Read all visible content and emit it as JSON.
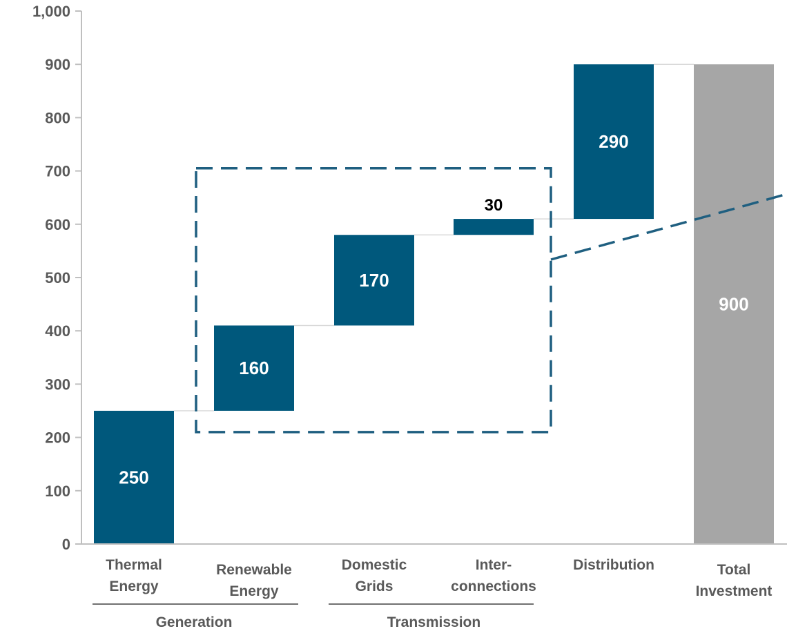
{
  "chart_data": {
    "type": "bar",
    "subtype": "waterfall",
    "title": "",
    "xlabel": "",
    "ylabel": "",
    "ylim": [
      0,
      1000
    ],
    "yticks": [
      "0",
      "100",
      "200",
      "300",
      "400",
      "500",
      "600",
      "700",
      "800",
      "900",
      "1,000"
    ],
    "grid": false,
    "categories": [
      [
        "Thermal",
        "Energy"
      ],
      [
        "Renewable",
        "Energy"
      ],
      [
        "Domestic",
        "Grids"
      ],
      [
        "Inter-",
        "connections"
      ],
      [
        "Distribution"
      ],
      [
        "Total",
        "Investment"
      ]
    ],
    "bars": [
      {
        "base": 0,
        "value": 250,
        "label": "250",
        "kind": "increment"
      },
      {
        "base": 250,
        "value": 160,
        "label": "160",
        "kind": "increment"
      },
      {
        "base": 410,
        "value": 170,
        "label": "170",
        "kind": "increment"
      },
      {
        "base": 580,
        "value": 30,
        "label": "30",
        "kind": "increment"
      },
      {
        "base": 610,
        "value": 290,
        "label": "290",
        "kind": "increment"
      },
      {
        "base": 0,
        "value": 900,
        "label": "900",
        "kind": "total"
      }
    ],
    "groups": [
      {
        "name": "Generation",
        "from": 0,
        "to": 1
      },
      {
        "name": "Transmission",
        "from": 2,
        "to": 3
      }
    ],
    "highlight_box": {
      "from": 1,
      "to": 3,
      "ymin": 210,
      "ymax": 705
    },
    "colors": {
      "increment": "#00587C",
      "total": "#A6A6A6",
      "axis": "#BFBFBF",
      "connector": "#D9D9D9",
      "dashed": "#1F5F80"
    }
  }
}
